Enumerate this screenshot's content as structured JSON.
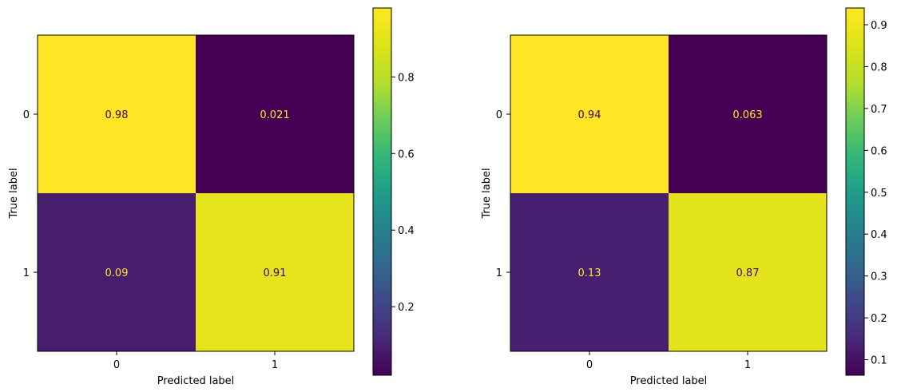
{
  "chart_data": [
    {
      "type": "heatmap",
      "title": "",
      "xlabel": "Predicted label",
      "ylabel": "True label",
      "x_categories": [
        "0",
        "1"
      ],
      "y_categories": [
        "0",
        "1"
      ],
      "values": [
        [
          0.98,
          0.021
        ],
        [
          0.09,
          0.91
        ]
      ],
      "cell_labels": [
        [
          "0.98",
          "0.021"
        ],
        [
          "0.09",
          "0.91"
        ]
      ],
      "colormap": "viridis",
      "colorbar": {
        "range": [
          0.021,
          0.98
        ],
        "ticks": [
          "0.2",
          "0.4",
          "0.6",
          "0.8"
        ]
      }
    },
    {
      "type": "heatmap",
      "title": "",
      "xlabel": "Predicted label",
      "ylabel": "True label",
      "x_categories": [
        "0",
        "1"
      ],
      "y_categories": [
        "0",
        "1"
      ],
      "values": [
        [
          0.94,
          0.063
        ],
        [
          0.13,
          0.87
        ]
      ],
      "cell_labels": [
        [
          "0.94",
          "0.063"
        ],
        [
          "0.13",
          "0.87"
        ]
      ],
      "colormap": "viridis",
      "colorbar": {
        "range": [
          0.063,
          0.94
        ],
        "ticks": [
          "0.1",
          "0.2",
          "0.3",
          "0.4",
          "0.5",
          "0.6",
          "0.7",
          "0.8",
          "0.9"
        ]
      }
    }
  ],
  "colors": {
    "dark_text": "#440154",
    "light_text": "#fde725"
  }
}
